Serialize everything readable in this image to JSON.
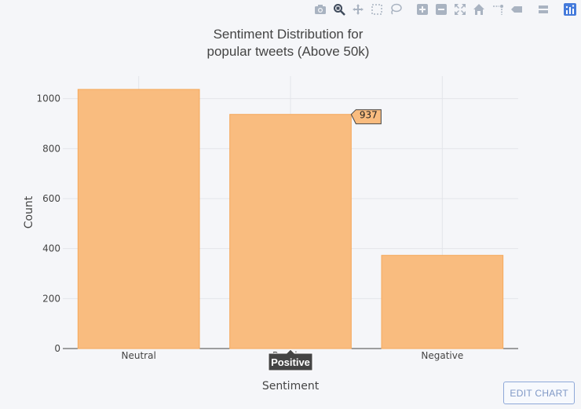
{
  "toolbar": {
    "buttons": [
      {
        "icon": "camera-icon",
        "name": "download-plot-button"
      },
      {
        "icon": "zoom-icon",
        "name": "zoom-button",
        "active": true
      },
      {
        "icon": "pan-icon",
        "name": "pan-button"
      },
      {
        "icon": "box-select-icon",
        "name": "box-select-button"
      },
      {
        "icon": "lasso-select-icon",
        "name": "lasso-select-button"
      },
      {
        "icon": "zoom-in-icon",
        "name": "zoom-in-button"
      },
      {
        "icon": "zoom-out-icon",
        "name": "zoom-out-button"
      },
      {
        "icon": "autoscale-icon",
        "name": "autoscale-button"
      },
      {
        "icon": "home-icon",
        "name": "reset-axes-button"
      },
      {
        "icon": "spike-lines-icon",
        "name": "spike-lines-button"
      },
      {
        "icon": "hover-closest-icon",
        "name": "hover-closest-button"
      },
      {
        "icon": "hover-compare-icon",
        "name": "hover-compare-button"
      },
      {
        "icon": "plotly-logo-icon",
        "name": "plotly-logo"
      }
    ]
  },
  "edit_chart_label": "EDIT CHART",
  "chart_data": {
    "type": "bar",
    "title_lines": [
      "Sentiment Distribution for",
      "popular tweets (Above 50k)"
    ],
    "xlabel": "Sentiment",
    "ylabel": "Count",
    "categories": [
      "Neutral",
      "Positive",
      "Negative"
    ],
    "values": [
      1037,
      937,
      373
    ],
    "ylim": [
      0,
      1090
    ],
    "yticks": [
      0,
      200,
      400,
      600,
      800,
      1000
    ],
    "grid": true,
    "bar_color": "#f9bc7f",
    "bar_line_color": "#f5a95c",
    "hover": {
      "category": "Positive",
      "value_label": "937",
      "axis_label": "Positive"
    }
  }
}
